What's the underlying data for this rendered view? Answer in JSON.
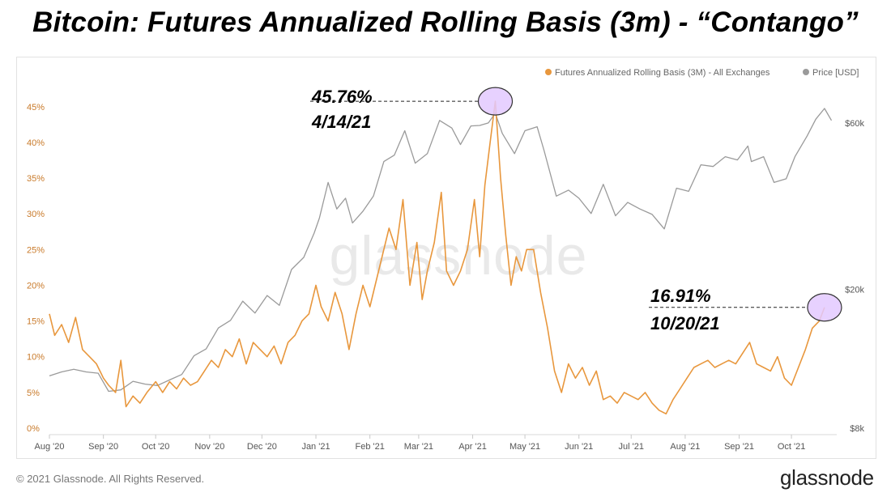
{
  "title": "Bitcoin: Futures Annualized Rolling Basis (3m) - “Contango”",
  "footer": {
    "copyright": "© 2021 Glassnode. All Rights Reserved.",
    "logo": "glassnode"
  },
  "watermark": "glassnode",
  "colors": {
    "basis": "#e8973d",
    "price": "#9a9a9a",
    "marker_fill": "#e3c9ff",
    "marker_stroke": "#333333",
    "axis_text": "#c97a2a",
    "right_axis_text": "#555555"
  },
  "annotations": [
    {
      "value_label": "45.76%",
      "date_label": "4/14/21",
      "date": "2021-04-14",
      "value": 45.76
    },
    {
      "value_label": "16.91%",
      "date_label": "10/20/21",
      "date": "2021-10-20",
      "value": 16.91
    }
  ],
  "chart_data": {
    "type": "line",
    "title": "Bitcoin: Futures Annualized Rolling Basis (3m) - “Contango”",
    "x_range": [
      "2020-08-01",
      "2021-10-27"
    ],
    "x_ticks": [
      "Aug '20",
      "Sep '20",
      "Oct '20",
      "Nov '20",
      "Dec '20",
      "Jan '21",
      "Feb '21",
      "Mar '21",
      "Apr '21",
      "May '21",
      "Jun '21",
      "Jul '21",
      "Aug '21",
      "Sep '21",
      "Oct '21"
    ],
    "x_tick_dates": [
      "2020-08-01",
      "2020-09-01",
      "2020-10-01",
      "2020-11-01",
      "2020-12-01",
      "2021-01-01",
      "2021-02-01",
      "2021-03-01",
      "2021-04-01",
      "2021-05-01",
      "2021-06-01",
      "2021-07-01",
      "2021-08-01",
      "2021-09-01",
      "2021-10-01"
    ],
    "y_left": {
      "ticks": [
        "0%",
        "5%",
        "10%",
        "15%",
        "20%",
        "25%",
        "30%",
        "35%",
        "40%",
        "45%"
      ],
      "range": [
        0,
        46
      ]
    },
    "y_right": {
      "ticks": [
        "$8k",
        "$20k",
        "$60k"
      ],
      "tick_values": [
        8000,
        20000,
        60000
      ],
      "scale": "log",
      "range": [
        8000,
        70000
      ]
    },
    "legend_position": "top-right",
    "grid": false,
    "series": [
      {
        "name": "Futures Annualized Rolling Basis (3M) - All Exchanges",
        "axis": "left",
        "points": [
          [
            "2020-08-01",
            16.0
          ],
          [
            "2020-08-04",
            13.0
          ],
          [
            "2020-08-08",
            14.5
          ],
          [
            "2020-08-12",
            12.0
          ],
          [
            "2020-08-16",
            15.5
          ],
          [
            "2020-08-20",
            11.0
          ],
          [
            "2020-08-24",
            10.0
          ],
          [
            "2020-08-28",
            9.0
          ],
          [
            "2020-09-01",
            7.0
          ],
          [
            "2020-09-04",
            6.0
          ],
          [
            "2020-09-08",
            5.0
          ],
          [
            "2020-09-11",
            9.5
          ],
          [
            "2020-09-14",
            3.0
          ],
          [
            "2020-09-18",
            4.5
          ],
          [
            "2020-09-22",
            3.5
          ],
          [
            "2020-09-26",
            5.0
          ],
          [
            "2020-10-01",
            6.5
          ],
          [
            "2020-10-05",
            5.0
          ],
          [
            "2020-10-09",
            6.5
          ],
          [
            "2020-10-13",
            5.5
          ],
          [
            "2020-10-17",
            7.0
          ],
          [
            "2020-10-21",
            6.0
          ],
          [
            "2020-10-25",
            6.5
          ],
          [
            "2020-10-29",
            8.0
          ],
          [
            "2020-11-02",
            9.5
          ],
          [
            "2020-11-06",
            8.5
          ],
          [
            "2020-11-10",
            11.0
          ],
          [
            "2020-11-14",
            10.0
          ],
          [
            "2020-11-18",
            12.5
          ],
          [
            "2020-11-22",
            9.0
          ],
          [
            "2020-11-26",
            12.0
          ],
          [
            "2020-11-30",
            11.0
          ],
          [
            "2020-12-04",
            10.0
          ],
          [
            "2020-12-08",
            11.5
          ],
          [
            "2020-12-12",
            9.0
          ],
          [
            "2020-12-16",
            12.0
          ],
          [
            "2020-12-20",
            13.0
          ],
          [
            "2020-12-24",
            15.0
          ],
          [
            "2020-12-28",
            16.0
          ],
          [
            "2021-01-01",
            20.0
          ],
          [
            "2021-01-04",
            17.0
          ],
          [
            "2021-01-08",
            15.0
          ],
          [
            "2021-01-12",
            19.0
          ],
          [
            "2021-01-16",
            16.0
          ],
          [
            "2021-01-20",
            11.0
          ],
          [
            "2021-01-24",
            16.0
          ],
          [
            "2021-01-28",
            20.0
          ],
          [
            "2021-02-01",
            17.0
          ],
          [
            "2021-02-04",
            20.0
          ],
          [
            "2021-02-08",
            24.0
          ],
          [
            "2021-02-12",
            28.0
          ],
          [
            "2021-02-16",
            25.0
          ],
          [
            "2021-02-20",
            32.0
          ],
          [
            "2021-02-24",
            20.0
          ],
          [
            "2021-02-28",
            26.0
          ],
          [
            "2021-03-03",
            18.0
          ],
          [
            "2021-03-06",
            22.0
          ],
          [
            "2021-03-10",
            26.0
          ],
          [
            "2021-03-14",
            33.0
          ],
          [
            "2021-03-17",
            22.0
          ],
          [
            "2021-03-21",
            20.0
          ],
          [
            "2021-03-25",
            22.0
          ],
          [
            "2021-03-29",
            25.0
          ],
          [
            "2021-04-02",
            32.0
          ],
          [
            "2021-04-05",
            24.0
          ],
          [
            "2021-04-08",
            34.0
          ],
          [
            "2021-04-11",
            40.0
          ],
          [
            "2021-04-14",
            45.76
          ],
          [
            "2021-04-17",
            35.0
          ],
          [
            "2021-04-20",
            27.0
          ],
          [
            "2021-04-23",
            20.0
          ],
          [
            "2021-04-26",
            24.0
          ],
          [
            "2021-04-29",
            22.0
          ],
          [
            "2021-05-02",
            25.0
          ],
          [
            "2021-05-06",
            25.0
          ],
          [
            "2021-05-10",
            19.0
          ],
          [
            "2021-05-14",
            14.0
          ],
          [
            "2021-05-18",
            8.0
          ],
          [
            "2021-05-22",
            5.0
          ],
          [
            "2021-05-26",
            9.0
          ],
          [
            "2021-05-30",
            7.0
          ],
          [
            "2021-06-03",
            8.5
          ],
          [
            "2021-06-07",
            6.0
          ],
          [
            "2021-06-11",
            8.0
          ],
          [
            "2021-06-15",
            4.0
          ],
          [
            "2021-06-19",
            4.5
          ],
          [
            "2021-06-23",
            3.5
          ],
          [
            "2021-06-27",
            5.0
          ],
          [
            "2021-07-01",
            4.5
          ],
          [
            "2021-07-05",
            4.0
          ],
          [
            "2021-07-09",
            5.0
          ],
          [
            "2021-07-13",
            3.5
          ],
          [
            "2021-07-17",
            2.5
          ],
          [
            "2021-07-21",
            2.0
          ],
          [
            "2021-07-25",
            4.0
          ],
          [
            "2021-07-29",
            5.5
          ],
          [
            "2021-08-02",
            7.0
          ],
          [
            "2021-08-06",
            8.5
          ],
          [
            "2021-08-10",
            9.0
          ],
          [
            "2021-08-14",
            9.5
          ],
          [
            "2021-08-18",
            8.5
          ],
          [
            "2021-08-22",
            9.0
          ],
          [
            "2021-08-26",
            9.5
          ],
          [
            "2021-08-30",
            9.0
          ],
          [
            "2021-09-03",
            10.5
          ],
          [
            "2021-09-07",
            12.0
          ],
          [
            "2021-09-11",
            9.0
          ],
          [
            "2021-09-15",
            8.5
          ],
          [
            "2021-09-19",
            8.0
          ],
          [
            "2021-09-23",
            10.0
          ],
          [
            "2021-09-27",
            7.0
          ],
          [
            "2021-10-01",
            6.0
          ],
          [
            "2021-10-05",
            8.5
          ],
          [
            "2021-10-09",
            11.0
          ],
          [
            "2021-10-13",
            14.0
          ],
          [
            "2021-10-17",
            15.0
          ],
          [
            "2021-10-20",
            16.91
          ]
        ]
      },
      {
        "name": "Price [USD]",
        "axis": "right",
        "points": [
          [
            "2020-08-01",
            11300
          ],
          [
            "2020-08-08",
            11600
          ],
          [
            "2020-08-15",
            11800
          ],
          [
            "2020-08-22",
            11600
          ],
          [
            "2020-08-29",
            11500
          ],
          [
            "2020-09-04",
            10200
          ],
          [
            "2020-09-11",
            10300
          ],
          [
            "2020-09-18",
            10900
          ],
          [
            "2020-09-25",
            10700
          ],
          [
            "2020-10-02",
            10600
          ],
          [
            "2020-10-09",
            11000
          ],
          [
            "2020-10-16",
            11400
          ],
          [
            "2020-10-23",
            12900
          ],
          [
            "2020-10-30",
            13500
          ],
          [
            "2020-11-06",
            15500
          ],
          [
            "2020-11-13",
            16300
          ],
          [
            "2020-11-20",
            18500
          ],
          [
            "2020-11-27",
            17100
          ],
          [
            "2020-12-04",
            19200
          ],
          [
            "2020-12-11",
            18000
          ],
          [
            "2020-12-18",
            22800
          ],
          [
            "2020-12-25",
            24700
          ],
          [
            "2020-12-31",
            29000
          ],
          [
            "2021-01-03",
            32000
          ],
          [
            "2021-01-08",
            40500
          ],
          [
            "2021-01-13",
            34000
          ],
          [
            "2021-01-18",
            36500
          ],
          [
            "2021-01-22",
            31000
          ],
          [
            "2021-01-28",
            33500
          ],
          [
            "2021-02-03",
            37000
          ],
          [
            "2021-02-09",
            46500
          ],
          [
            "2021-02-15",
            48500
          ],
          [
            "2021-02-21",
            57000
          ],
          [
            "2021-02-27",
            46000
          ],
          [
            "2021-03-06",
            49000
          ],
          [
            "2021-03-13",
            61000
          ],
          [
            "2021-03-20",
            58000
          ],
          [
            "2021-03-25",
            52000
          ],
          [
            "2021-03-31",
            58800
          ],
          [
            "2021-04-05",
            59000
          ],
          [
            "2021-04-10",
            60000
          ],
          [
            "2021-04-14",
            64000
          ],
          [
            "2021-04-18",
            56000
          ],
          [
            "2021-04-25",
            49000
          ],
          [
            "2021-05-01",
            57000
          ],
          [
            "2021-05-08",
            58500
          ],
          [
            "2021-05-12",
            50000
          ],
          [
            "2021-05-19",
            37000
          ],
          [
            "2021-05-26",
            38500
          ],
          [
            "2021-06-01",
            36500
          ],
          [
            "2021-06-08",
            33000
          ],
          [
            "2021-06-15",
            40000
          ],
          [
            "2021-06-22",
            32500
          ],
          [
            "2021-06-29",
            35500
          ],
          [
            "2021-07-06",
            34000
          ],
          [
            "2021-07-13",
            32800
          ],
          [
            "2021-07-20",
            29800
          ],
          [
            "2021-07-27",
            39000
          ],
          [
            "2021-08-03",
            38200
          ],
          [
            "2021-08-10",
            45500
          ],
          [
            "2021-08-17",
            45000
          ],
          [
            "2021-08-24",
            48000
          ],
          [
            "2021-08-31",
            47000
          ],
          [
            "2021-09-06",
            51500
          ],
          [
            "2021-09-08",
            46500
          ],
          [
            "2021-09-15",
            48000
          ],
          [
            "2021-09-21",
            40500
          ],
          [
            "2021-09-28",
            41500
          ],
          [
            "2021-10-03",
            48000
          ],
          [
            "2021-10-10",
            55000
          ],
          [
            "2021-10-15",
            61500
          ],
          [
            "2021-10-20",
            66000
          ],
          [
            "2021-10-24",
            61000
          ]
        ]
      }
    ]
  }
}
